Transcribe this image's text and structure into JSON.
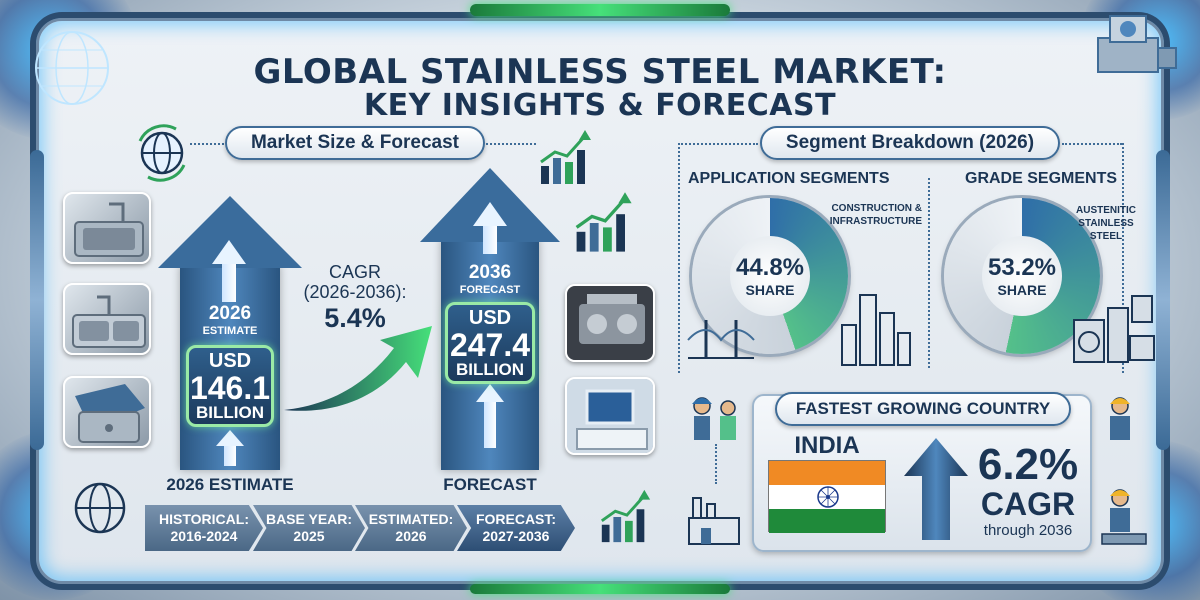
{
  "title": {
    "line1": "GLOBAL  STAINLESS STEEL MARKET:",
    "line2": "KEY INSIGHTS & FORECAST"
  },
  "market_section": {
    "header": "Market Size & Forecast",
    "estimate": {
      "year": "2026",
      "year_sub": "ESTIMATE",
      "currency": "USD",
      "value": "146.1",
      "unit": "BILLION",
      "caption": "2026 ESTIMATE"
    },
    "forecast": {
      "year": "2036",
      "year_sub": "FORECAST",
      "currency": "USD",
      "value": "247.4",
      "unit": "BILLION",
      "caption": "FORECAST"
    },
    "cagr": {
      "label": "CAGR",
      "period": "(2026-2036):",
      "value": "5.4%"
    }
  },
  "timeline": [
    {
      "label": "HISTORICAL:",
      "value": "2016-2024"
    },
    {
      "label": "BASE YEAR:",
      "value": "2025"
    },
    {
      "label": "ESTIMATED:",
      "value": "2026"
    },
    {
      "label": "FORECAST:",
      "value": "2027-2036"
    }
  ],
  "segment_section": {
    "header": "Segment Breakdown (2026)",
    "application": {
      "title": "APPLICATION SEGMENTS",
      "note_line1": "CONSTRUCTION &",
      "note_line2": "INFRASTRUCTURE",
      "percent": "44.8%",
      "share_label": "SHARE",
      "share_fraction": 0.448
    },
    "grade": {
      "title": "GRADE SEGMENTS",
      "note_line1": "AUSTENITIC",
      "note_line2": "STAINLESS",
      "note_line3": "STEEL",
      "percent": "53.2%",
      "share_label": "SHARE",
      "share_fraction": 0.532
    }
  },
  "country": {
    "header": "FASTEST GROWING COUNTRY",
    "name": "INDIA",
    "cagr_value": "6.2%",
    "cagr_label": "CAGR",
    "through": "through 2036"
  },
  "colors": {
    "navy": "#1b3554",
    "steel_blue": "#3f6c97",
    "accent_green": "#46e07a",
    "donut_blue": "#2f6ea8",
    "donut_green": "#54c08a",
    "india_saffron": "#f08a24",
    "india_green": "#1f8a3a",
    "india_chakra": "#1b3a8c"
  },
  "icons": [
    "globe-icon",
    "growth-chart-icon",
    "sink-image",
    "engine-image",
    "lab-equipment-image",
    "worker-icon",
    "factory-icon",
    "bridge-icon",
    "appliances-icon",
    "welder-icon",
    "network-globe-icon"
  ]
}
